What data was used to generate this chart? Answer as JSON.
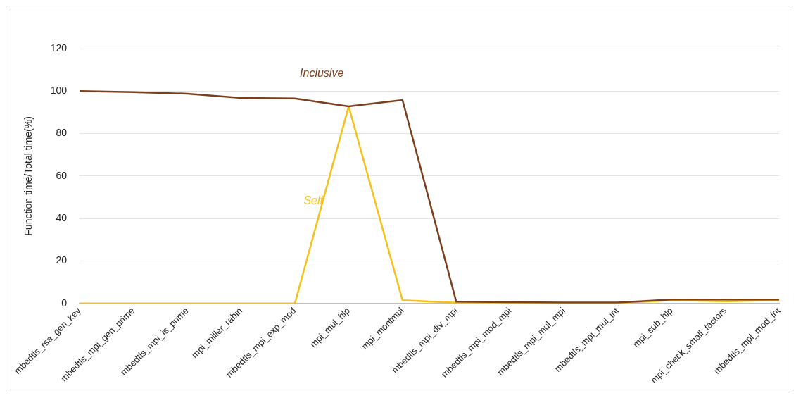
{
  "chart_data": {
    "type": "line",
    "ylabel": "Function time/Total time(%)",
    "categories": [
      "mbedtls_rsa_gen_key",
      "mbedtls_mpi_gen_prime",
      "mbedtls_mpi_is_prime",
      "mpi_miller_rabin",
      "mbedtls_mpi_exp_mod",
      "mpi_mul_hlp",
      "mpi_montmul",
      "mbedtls_mpi_div_mpi",
      "mbedtls_mpi_mod_mpi",
      "mbedtls_mpi_mul_mpi",
      "mbedtls_mpi_mul_int",
      "mpi_sub_hlp",
      "mpi_check_small_factors",
      "mbedtls_mpi_mod_int"
    ],
    "series": [
      {
        "name": "Inclusive",
        "color": "#7b3f1e",
        "values": [
          100,
          99.5,
          98.8,
          96.8,
          96.5,
          92.8,
          95.8,
          0.8,
          0.6,
          0.4,
          0.4,
          1.8,
          1.8,
          1.8
        ]
      },
      {
        "name": "Self",
        "color": "#f5c118",
        "values": [
          0,
          0,
          0,
          0,
          0,
          92.8,
          1.5,
          0.3,
          0.2,
          0.1,
          0.1,
          1.5,
          1,
          1.5
        ]
      }
    ],
    "ylim": [
      0,
      120
    ],
    "yticks": [
      0,
      20,
      40,
      60,
      80,
      100,
      120
    ],
    "grid": "y",
    "legend": false,
    "marker": "none",
    "line_style": "solid"
  }
}
